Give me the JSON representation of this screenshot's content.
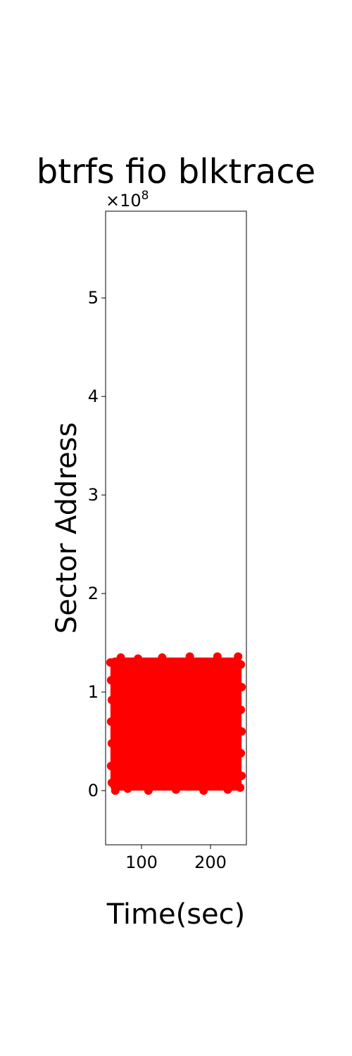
{
  "chart_data": {
    "type": "scatter",
    "title": "btrfs fio blktrace",
    "xlabel": "Time(sec)",
    "ylabel": "Sector Address",
    "xlim": [
      48,
      252
    ],
    "ylim": [
      -0.55,
      5.88
    ],
    "x_ticks": [
      100,
      200
    ],
    "y_ticks": [
      0,
      1,
      2,
      3,
      4,
      5
    ],
    "y_offset_text": {
      "base": "×10",
      "exponent": "8"
    },
    "grid": false,
    "legend": "none",
    "series": [
      {
        "color": "#ff0000",
        "marker": "circle",
        "region": {
          "x": [
            55,
            245
          ],
          "y": [
            0,
            1.35
          ]
        },
        "points": [
          [
            55,
            1.3
          ],
          [
            56,
            1.12
          ],
          [
            57,
            0.92
          ],
          [
            56,
            0.7
          ],
          [
            57,
            0.48
          ],
          [
            56,
            0.25
          ],
          [
            57,
            0.08
          ],
          [
            62,
            0.0
          ],
          [
            70,
            1.35
          ],
          [
            80,
            0.02
          ],
          [
            95,
            1.34
          ],
          [
            110,
            0.0
          ],
          [
            130,
            1.35
          ],
          [
            150,
            0.01
          ],
          [
            170,
            1.36
          ],
          [
            190,
            0.0
          ],
          [
            210,
            1.36
          ],
          [
            225,
            0.01
          ],
          [
            240,
            1.36
          ],
          [
            244,
            1.28
          ],
          [
            245,
            1.05
          ],
          [
            244,
            0.82
          ],
          [
            245,
            0.6
          ],
          [
            244,
            0.38
          ],
          [
            245,
            0.15
          ],
          [
            243,
            0.03
          ],
          [
            100,
            0.68
          ],
          [
            150,
            0.67
          ],
          [
            200,
            0.7
          ],
          [
            75,
            0.4
          ],
          [
            125,
            0.95
          ],
          [
            175,
            0.3
          ],
          [
            225,
            1.1
          ],
          [
            85,
            1.2
          ],
          [
            135,
            0.2
          ],
          [
            185,
            1.05
          ],
          [
            235,
            0.5
          ]
        ]
      }
    ]
  }
}
